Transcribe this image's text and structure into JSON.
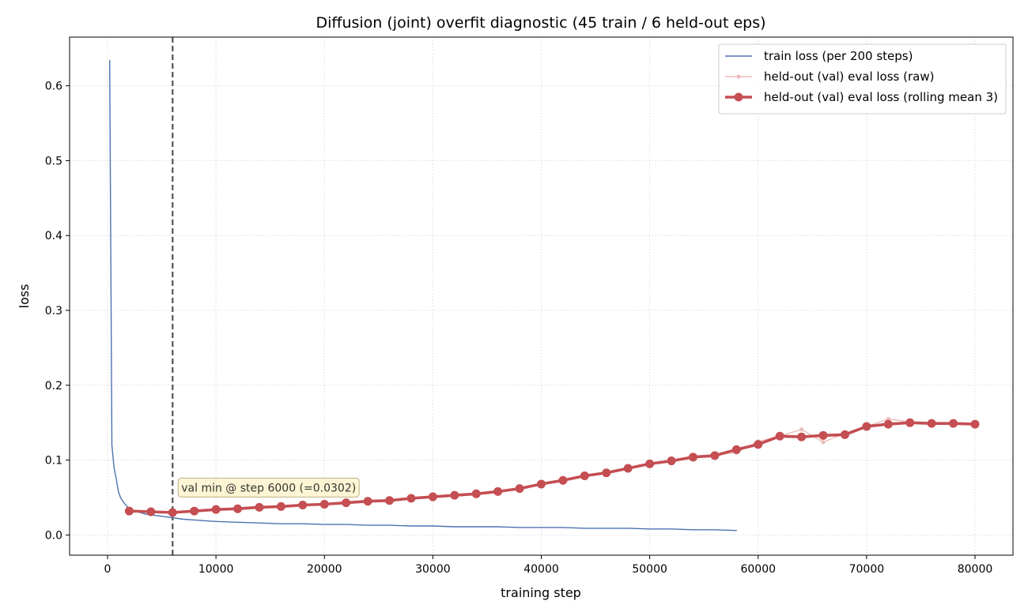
{
  "chart_data": {
    "type": "line",
    "title": "Diffusion (joint) overfit diagnostic (45 train / 6 held-out eps)",
    "xlabel": "training step",
    "ylabel": "loss",
    "xlim": [
      -3500,
      83500
    ],
    "ylim": [
      -0.027,
      0.665
    ],
    "xticks": [
      0,
      10000,
      20000,
      30000,
      40000,
      50000,
      60000,
      70000,
      80000
    ],
    "xtick_labels": [
      "0",
      "10000",
      "20000",
      "30000",
      "40000",
      "50000",
      "60000",
      "70000",
      "80000"
    ],
    "yticks": [
      0.0,
      0.1,
      0.2,
      0.3,
      0.4,
      0.5,
      0.6
    ],
    "ytick_labels": [
      "0.0",
      "0.1",
      "0.2",
      "0.3",
      "0.4",
      "0.5",
      "0.6"
    ],
    "grid": true,
    "legend_position": "top-right",
    "series": [
      {
        "name": "train loss (per 200 steps)",
        "color": "#4c72b0",
        "style": "thin-line",
        "x": [
          200,
          400,
          600,
          800,
          1000,
          1200,
          1500,
          1800,
          2200,
          2600,
          3000,
          3500,
          4000,
          4500,
          5000,
          5500,
          6000,
          7000,
          8000,
          9000,
          10000,
          12000,
          14000,
          16000,
          18000,
          20000,
          22000,
          24000,
          26000,
          28000,
          30000,
          32000,
          34000,
          36000,
          38000,
          40000,
          42000,
          44000,
          46000,
          48000,
          50000,
          52000,
          54000,
          56000,
          58000
        ],
        "y": [
          0.634,
          0.12,
          0.09,
          0.075,
          0.058,
          0.05,
          0.043,
          0.038,
          0.034,
          0.032,
          0.03,
          0.028,
          0.027,
          0.026,
          0.025,
          0.024,
          0.023,
          0.021,
          0.02,
          0.019,
          0.018,
          0.017,
          0.016,
          0.015,
          0.015,
          0.014,
          0.014,
          0.013,
          0.013,
          0.012,
          0.012,
          0.011,
          0.011,
          0.011,
          0.01,
          0.01,
          0.01,
          0.009,
          0.009,
          0.009,
          0.008,
          0.008,
          0.007,
          0.007,
          0.006
        ]
      },
      {
        "name": "held-out (val) eval loss (raw)",
        "color": "#e8a8a6",
        "style": "thin-line-markers",
        "x": [
          2000,
          4000,
          6000,
          8000,
          10000,
          12000,
          14000,
          16000,
          18000,
          20000,
          22000,
          24000,
          26000,
          28000,
          30000,
          32000,
          34000,
          36000,
          38000,
          40000,
          42000,
          44000,
          46000,
          48000,
          50000,
          52000,
          54000,
          56000,
          58000,
          60000,
          62000,
          64000,
          66000,
          68000,
          70000,
          72000,
          74000,
          76000,
          78000,
          80000
        ],
        "y": [
          0.033,
          0.031,
          0.0302,
          0.032,
          0.034,
          0.036,
          0.037,
          0.039,
          0.04,
          0.041,
          0.043,
          0.046,
          0.045,
          0.049,
          0.051,
          0.054,
          0.056,
          0.058,
          0.062,
          0.068,
          0.073,
          0.079,
          0.083,
          0.089,
          0.095,
          0.1,
          0.104,
          0.107,
          0.11,
          0.125,
          0.132,
          0.141,
          0.124,
          0.136,
          0.145,
          0.155,
          0.151,
          0.149,
          0.15,
          0.148
        ]
      },
      {
        "name": "held-out (val) eval loss (rolling mean 3)",
        "color": "#c44e52",
        "style": "thick-line-markers",
        "x": [
          2000,
          4000,
          6000,
          8000,
          10000,
          12000,
          14000,
          16000,
          18000,
          20000,
          22000,
          24000,
          26000,
          28000,
          30000,
          32000,
          34000,
          36000,
          38000,
          40000,
          42000,
          44000,
          46000,
          48000,
          50000,
          52000,
          54000,
          56000,
          58000,
          60000,
          62000,
          64000,
          66000,
          68000,
          70000,
          72000,
          74000,
          76000,
          78000,
          80000
        ],
        "y": [
          0.032,
          0.031,
          0.03,
          0.032,
          0.034,
          0.035,
          0.037,
          0.038,
          0.04,
          0.041,
          0.043,
          0.045,
          0.046,
          0.049,
          0.051,
          0.053,
          0.055,
          0.058,
          0.062,
          0.068,
          0.073,
          0.079,
          0.083,
          0.089,
          0.095,
          0.099,
          0.104,
          0.106,
          0.114,
          0.121,
          0.132,
          0.131,
          0.133,
          0.134,
          0.145,
          0.148,
          0.15,
          0.149,
          0.149,
          0.148
        ]
      }
    ],
    "vline": {
      "x": 6000,
      "color": "#555555"
    },
    "annotation": {
      "text": "val min @ step 6000 (=0.0302)",
      "x": 6800,
      "y": 0.058,
      "bg": "#fdf5cf",
      "border": "#b5a87a"
    },
    "colors": {
      "grid": "#d9d9d9",
      "axis": "#000000"
    }
  }
}
